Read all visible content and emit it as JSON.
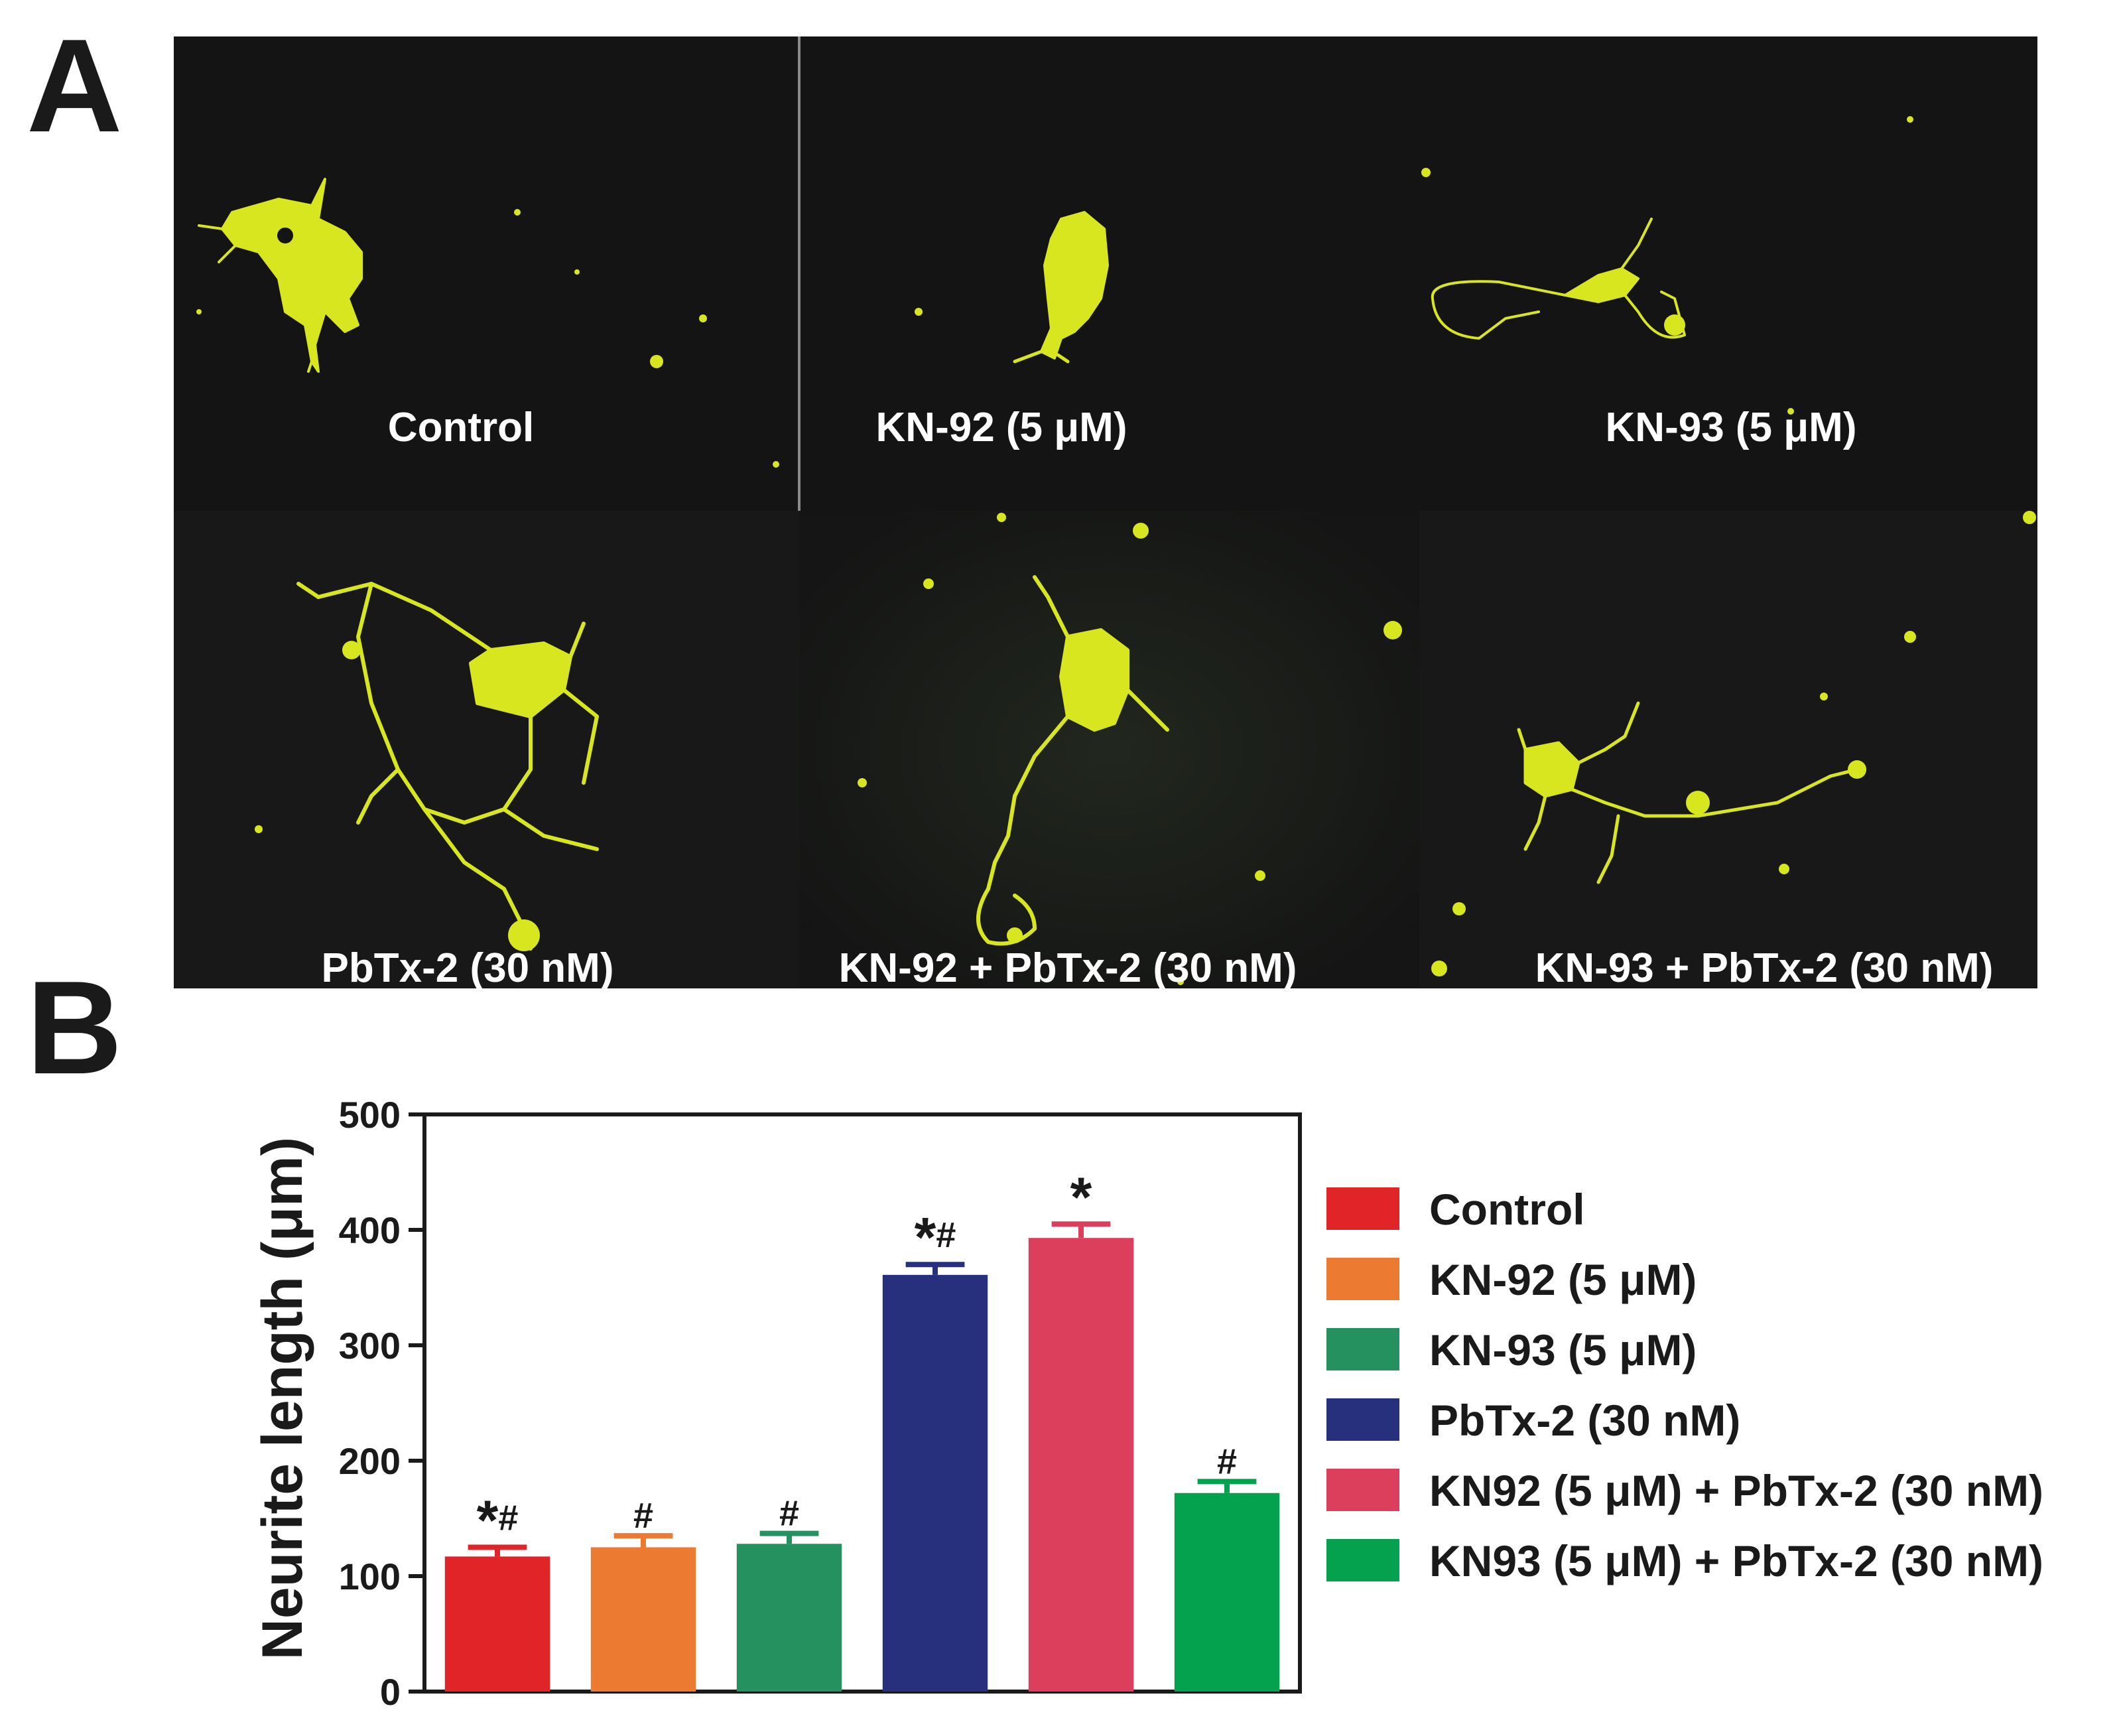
{
  "figure": {
    "panel_a_letter": "A",
    "panel_b_letter": "B"
  },
  "micrographs": {
    "labels": [
      "Control",
      "KN-92 (5 μM)",
      "KN-93 (5 μM)",
      "PbTx-2 (30 nM)",
      "KN-92 + PbTx-2 (30 nM)",
      "KN-93 + PbTx-2 (30 nM)"
    ],
    "background_color": "#141414",
    "cell_color": "#d8e620"
  },
  "chart_data": {
    "type": "bar",
    "ylabel": "Neurite length (μm)",
    "ylim": [
      0,
      500
    ],
    "yticks": [
      0,
      100,
      200,
      300,
      400,
      500
    ],
    "series": [
      {
        "name": "Control",
        "value": 117,
        "error": 8,
        "annotation": "*#",
        "color": "#e02428"
      },
      {
        "name": "KN-92 (5 μM)",
        "value": 125,
        "error": 10,
        "annotation": "#",
        "color": "#ec7a30"
      },
      {
        "name": "KN-93 (5 μM)",
        "value": 128,
        "error": 9,
        "annotation": "#",
        "color": "#24915e"
      },
      {
        "name": "PbTx-2 (30 nM)",
        "value": 361,
        "error": 9,
        "annotation": "*#",
        "color": "#27307c"
      },
      {
        "name": "KN92 (5 μM) + PbTx-2 (30 nM)",
        "value": 393,
        "error": 12,
        "annotation": "*",
        "color": "#db3f5c"
      },
      {
        "name": "KN93 (5 μM) + PbTx-2 (30 nM)",
        "value": 172,
        "error": 10,
        "annotation": "#",
        "color": "#04a24f"
      }
    ],
    "grid": false,
    "legend_position": "right"
  }
}
